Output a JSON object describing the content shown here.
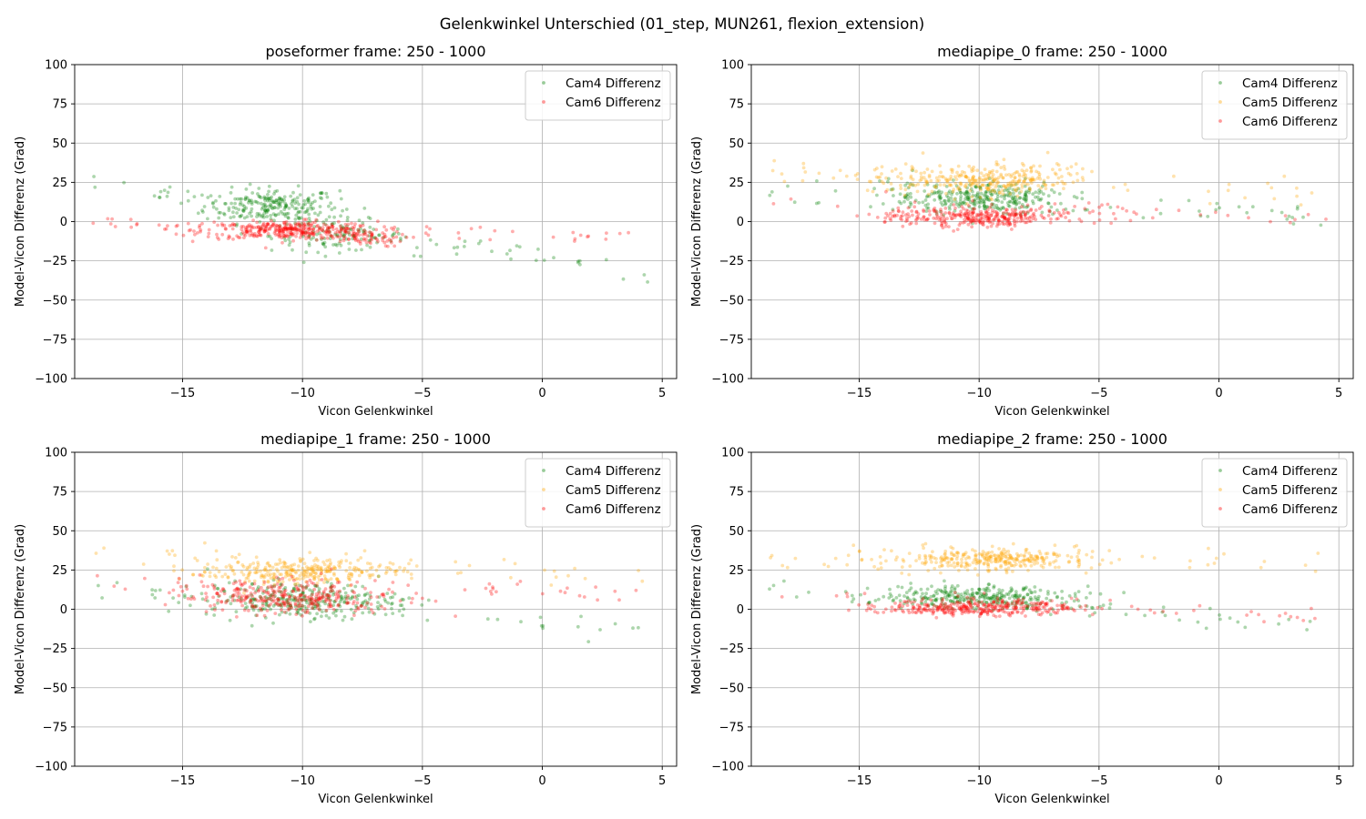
{
  "suptitle": "Gelenkwinkel Unterschied (01_step, MUN261, flexion_extension)",
  "colors": {
    "Cam4 Differenz": "#008000",
    "Cam5 Differenz": "#FFA500",
    "Cam6 Differenz": "#FF0000",
    "grid": "#b0b0b0"
  },
  "chart_data": [
    {
      "type": "scatter",
      "title": "poseformer frame: 250 - 1000",
      "xlabel": "Vicon Gelenkwinkel",
      "ylabel": "Model-Vicon Differenz (Grad)",
      "xlim": [
        -19.5,
        5.6
      ],
      "ylim": [
        -100,
        100
      ],
      "xticks": [
        -15,
        -10,
        -5,
        0,
        5
      ],
      "yticks": [
        -100,
        -75,
        -50,
        -25,
        0,
        25,
        50,
        75,
        100
      ],
      "grid": true,
      "legend_position": "top-right",
      "series": [
        {
          "name": "Cam4 Differenz",
          "color": "#008000",
          "clusters": [
            {
              "cx": -11.3,
              "cy": 10,
              "sx": 1.4,
              "sy": 5.5,
              "n": 240
            },
            {
              "cx": -8.5,
              "cy": -9,
              "sx": 1.4,
              "sy": 5,
              "n": 120
            }
          ],
          "trend": {
            "x0": -18.8,
            "y0": 24,
            "x1": 4.5,
            "y1": -35,
            "n": 60,
            "noise": 4
          }
        },
        {
          "name": "Cam6 Differenz",
          "color": "#FF0000",
          "clusters": [
            {
              "cx": -10.5,
              "cy": -5.5,
              "sx": 1.8,
              "sy": 2.8,
              "n": 330
            },
            {
              "cx": -7.5,
              "cy": -11,
              "sx": 0.9,
              "sy": 2.5,
              "n": 60
            }
          ],
          "trend": {
            "x0": -18.8,
            "y0": 0,
            "x1": 4.5,
            "y1": -11,
            "n": 55,
            "noise": 2.5
          }
        }
      ]
    },
    {
      "type": "scatter",
      "title": "mediapipe_0 frame: 250 - 1000",
      "xlabel": "Vicon Gelenkwinkel",
      "ylabel": "Model-Vicon Differenz (Grad)",
      "xlim": [
        -19.5,
        5.6
      ],
      "ylim": [
        -100,
        100
      ],
      "xticks": [
        -15,
        -10,
        -5,
        0,
        5
      ],
      "yticks": [
        -100,
        -75,
        -50,
        -25,
        0,
        25,
        50,
        75,
        100
      ],
      "grid": true,
      "legend_position": "top-right",
      "series": [
        {
          "name": "Cam4 Differenz",
          "color": "#008000",
          "clusters": [
            {
              "cx": -10,
              "cy": 15,
              "sx": 1.8,
              "sy": 5,
              "n": 300
            }
          ],
          "trend": {
            "x0": -18.8,
            "y0": 18,
            "x1": 4.5,
            "y1": 2,
            "n": 50,
            "noise": 4
          }
        },
        {
          "name": "Cam5 Differenz",
          "color": "#FFA500",
          "clusters": [
            {
              "cx": -9.8,
              "cy": 27,
              "sx": 2.0,
              "sy": 5,
              "n": 300
            }
          ],
          "trend": {
            "x0": -18.8,
            "y0": 32,
            "x1": 4.5,
            "y1": 15,
            "n": 50,
            "noise": 5
          }
        },
        {
          "name": "Cam6 Differenz",
          "color": "#FF0000",
          "clusters": [
            {
              "cx": -10,
              "cy": 3,
              "sx": 2.0,
              "sy": 3,
              "n": 320
            }
          ],
          "trend": {
            "x0": -18.8,
            "y0": 14,
            "x1": 4.5,
            "y1": 1,
            "n": 45,
            "noise": 3
          }
        }
      ]
    },
    {
      "type": "scatter",
      "title": "mediapipe_1 frame: 250 - 1000",
      "xlabel": "Vicon Gelenkwinkel",
      "ylabel": "Model-Vicon Differenz (Grad)",
      "xlim": [
        -19.5,
        5.6
      ],
      "ylim": [
        -100,
        100
      ],
      "xticks": [
        -15,
        -10,
        -5,
        0,
        5
      ],
      "yticks": [
        -100,
        -75,
        -50,
        -25,
        0,
        25,
        50,
        75,
        100
      ],
      "grid": true,
      "legend_position": "top-right",
      "series": [
        {
          "name": "Cam4 Differenz",
          "color": "#008000",
          "clusters": [
            {
              "cx": -10,
              "cy": 6,
              "sx": 2.0,
              "sy": 5.5,
              "n": 280
            }
          ],
          "trend": {
            "x0": -18.8,
            "y0": 12,
            "x1": 4.5,
            "y1": -15,
            "n": 55,
            "noise": 4
          }
        },
        {
          "name": "Cam5 Differenz",
          "color": "#FFA500",
          "clusters": [
            {
              "cx": -10.2,
              "cy": 24,
              "sx": 2.0,
              "sy": 4,
              "n": 280
            }
          ],
          "trend": {
            "x0": -18.8,
            "y0": 35,
            "x1": 4.5,
            "y1": 20,
            "n": 50,
            "noise": 4
          }
        },
        {
          "name": "Cam6 Differenz",
          "color": "#FF0000",
          "clusters": [
            {
              "cx": -10.3,
              "cy": 7,
              "sx": 2.1,
              "sy": 5,
              "n": 320
            }
          ],
          "trend": {
            "x0": -18.8,
            "y0": 20,
            "x1": 4.5,
            "y1": 10,
            "n": 50,
            "noise": 4
          }
        }
      ]
    },
    {
      "type": "scatter",
      "title": "mediapipe_2 frame: 250 - 1000",
      "xlabel": "Vicon Gelenkwinkel",
      "ylabel": "Model-Vicon Differenz (Grad)",
      "xlim": [
        -19.5,
        5.6
      ],
      "ylim": [
        -100,
        100
      ],
      "xticks": [
        -15,
        -10,
        -5,
        0,
        5
      ],
      "yticks": [
        -100,
        -75,
        -50,
        -25,
        0,
        25,
        50,
        75,
        100
      ],
      "grid": true,
      "legend_position": "top-right",
      "series": [
        {
          "name": "Cam4 Differenz",
          "color": "#008000",
          "clusters": [
            {
              "cx": -10,
              "cy": 8,
              "sx": 2.0,
              "sy": 3.5,
              "n": 300
            }
          ],
          "trend": {
            "x0": -18.8,
            "y0": 14,
            "x1": 4.5,
            "y1": -12,
            "n": 50,
            "noise": 3
          }
        },
        {
          "name": "Cam5 Differenz",
          "color": "#FFA500",
          "clusters": [
            {
              "cx": -9.8,
              "cy": 32,
              "sx": 2.0,
              "sy": 3.5,
              "n": 300
            }
          ],
          "trend": {
            "x0": -18.8,
            "y0": 32,
            "x1": 4.5,
            "y1": 31,
            "n": 45,
            "noise": 4
          }
        },
        {
          "name": "Cam6 Differenz",
          "color": "#FF0000",
          "clusters": [
            {
              "cx": -10,
              "cy": 1,
              "sx": 2.0,
              "sy": 2.5,
              "n": 320
            }
          ],
          "trend": {
            "x0": -18.8,
            "y0": 11,
            "x1": 4.5,
            "y1": -5,
            "n": 45,
            "noise": 2.5
          }
        }
      ]
    }
  ]
}
